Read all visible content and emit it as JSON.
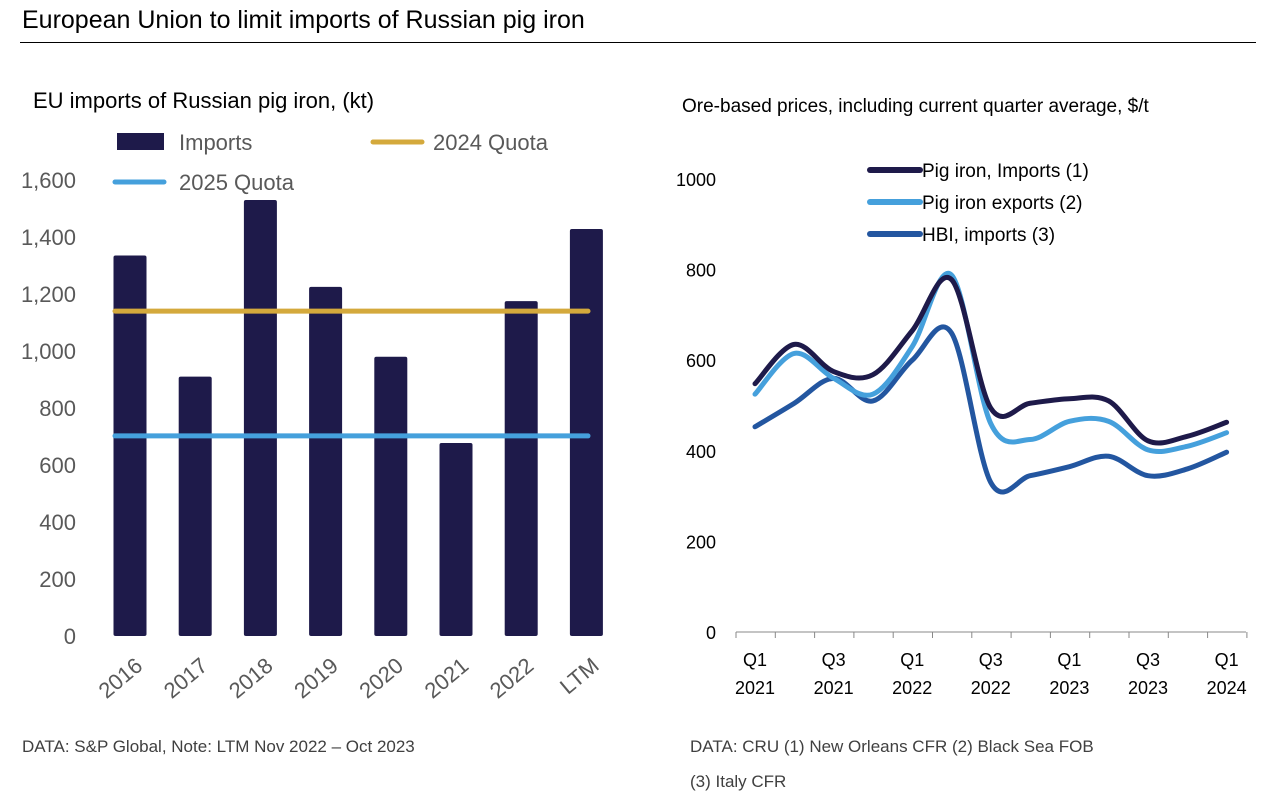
{
  "title": "European Union to limit imports of Russian pig iron",
  "colors": {
    "imports": "#1e1a4a",
    "quota_2024": "#d4a93c",
    "quota_2025": "#45a0dc",
    "pig_iron_imports": "#1e1a4a",
    "pig_iron_exports": "#45a0dc",
    "hbi_imports": "#2356a0"
  },
  "chart_data": [
    {
      "type": "bar",
      "title": "EU imports of Russian pig iron, (kt)",
      "categories": [
        "2016",
        "2017",
        "2018",
        "2019",
        "2020",
        "2021",
        "2022",
        "LTM"
      ],
      "series": [
        {
          "name": "Imports",
          "values": [
            1335,
            910,
            1530,
            1225,
            980,
            677,
            1175,
            1428
          ]
        }
      ],
      "reference_lines": [
        {
          "name": "2024 Quota",
          "value": 1140
        },
        {
          "name": "2025 Quota",
          "value": 702
        }
      ],
      "ylim": [
        0,
        1600
      ],
      "yticks": [
        "0",
        "200",
        "400",
        "600",
        "800",
        "1,000",
        "1,200",
        "1,400",
        "1,600"
      ],
      "legend": "top",
      "grid": false,
      "note": "DATA: S&P Global, Note: LTM Nov 2022 – Oct 2023"
    },
    {
      "type": "line",
      "title": "Ore-based prices, including current quarter average, $/t",
      "x": [
        "Q1 2021",
        "Q2 2021",
        "Q3 2021",
        "Q4 2021",
        "Q1 2022",
        "Q2 2022",
        "Q3 2022",
        "Q4 2022",
        "Q1 2023",
        "Q2 2023",
        "Q3 2023",
        "Q4 2023",
        "Q1 2024"
      ],
      "xtick_labels": [
        [
          "Q1",
          "2021"
        ],
        [
          "Q3",
          "2021"
        ],
        [
          "Q1",
          "2022"
        ],
        [
          "Q3",
          "2022"
        ],
        [
          "Q1",
          "2023"
        ],
        [
          "Q3",
          "2023"
        ],
        [
          "Q1",
          "2024"
        ]
      ],
      "series": [
        {
          "name": "Pig iron, Imports (1)",
          "values": [
            548,
            635,
            575,
            568,
            665,
            778,
            494,
            505,
            515,
            510,
            422,
            432,
            463
          ]
        },
        {
          "name": "Pig iron exports (2)",
          "values": [
            525,
            615,
            560,
            525,
            630,
            788,
            460,
            425,
            465,
            465,
            402,
            410,
            440
          ]
        },
        {
          "name": "HBI, imports (3)",
          "values": [
            453,
            505,
            560,
            510,
            600,
            660,
            330,
            345,
            365,
            388,
            345,
            360,
            397
          ]
        }
      ],
      "ylim": [
        0,
        1000
      ],
      "yticks": [
        "0",
        "200",
        "400",
        "600",
        "800",
        "1000"
      ],
      "legend": "top",
      "grid": false,
      "note": "DATA: CRU (1) New Orleans CFR (2) Black Sea FOB",
      "note2": "(3) Italy CFR"
    }
  ]
}
